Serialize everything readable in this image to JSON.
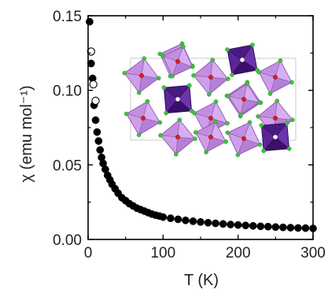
{
  "chart_data": {
    "type": "scatter",
    "title": "",
    "xlabel": "T (K)",
    "ylabel": "χ (emu mol⁻¹)",
    "xlim": [
      0,
      300
    ],
    "ylim": [
      0,
      0.15
    ],
    "xticks": [
      "0",
      "100",
      "200",
      "300"
    ],
    "yticks": [
      "0.00",
      "0.05",
      "0.10",
      "0.15"
    ],
    "grid": false,
    "legend": "none",
    "series": [
      {
        "marker": "filled-circle",
        "color": "#000000",
        "x": [
          2,
          4,
          6,
          8,
          10,
          12,
          14,
          16,
          18,
          20,
          23,
          26,
          29,
          32,
          36,
          40,
          45,
          50,
          55,
          60,
          65,
          70,
          75,
          80,
          85,
          90,
          95,
          100,
          110,
          120,
          130,
          140,
          150,
          160,
          170,
          180,
          190,
          200,
          210,
          220,
          230,
          240,
          250,
          260,
          270,
          280,
          290,
          300
        ],
        "y": [
          0.146,
          0.118,
          0.108,
          0.09,
          0.08,
          0.072,
          0.066,
          0.06,
          0.055,
          0.051,
          0.047,
          0.043,
          0.04,
          0.037,
          0.034,
          0.031,
          0.028,
          0.026,
          0.024,
          0.0225,
          0.021,
          0.02,
          0.019,
          0.018,
          0.017,
          0.0163,
          0.0157,
          0.015,
          0.0142,
          0.0135,
          0.0128,
          0.0122,
          0.0117,
          0.0112,
          0.0108,
          0.0104,
          0.01,
          0.0097,
          0.0094,
          0.0091,
          0.0088,
          0.0086,
          0.0083,
          0.0081,
          0.0079,
          0.0077,
          0.0076,
          0.0074
        ]
      },
      {
        "marker": "open-circle",
        "color": "#000000",
        "x": [
          4,
          7,
          10
        ],
        "y": [
          0.126,
          0.104,
          0.093
        ]
      }
    ],
    "inset": {
      "description_colors": {
        "light_octahedra": "#c38ee0",
        "dark_octahedra": "#4a1a80",
        "center_atoms": "#d22020",
        "vertex_atoms": "#3fbf3f"
      }
    }
  }
}
